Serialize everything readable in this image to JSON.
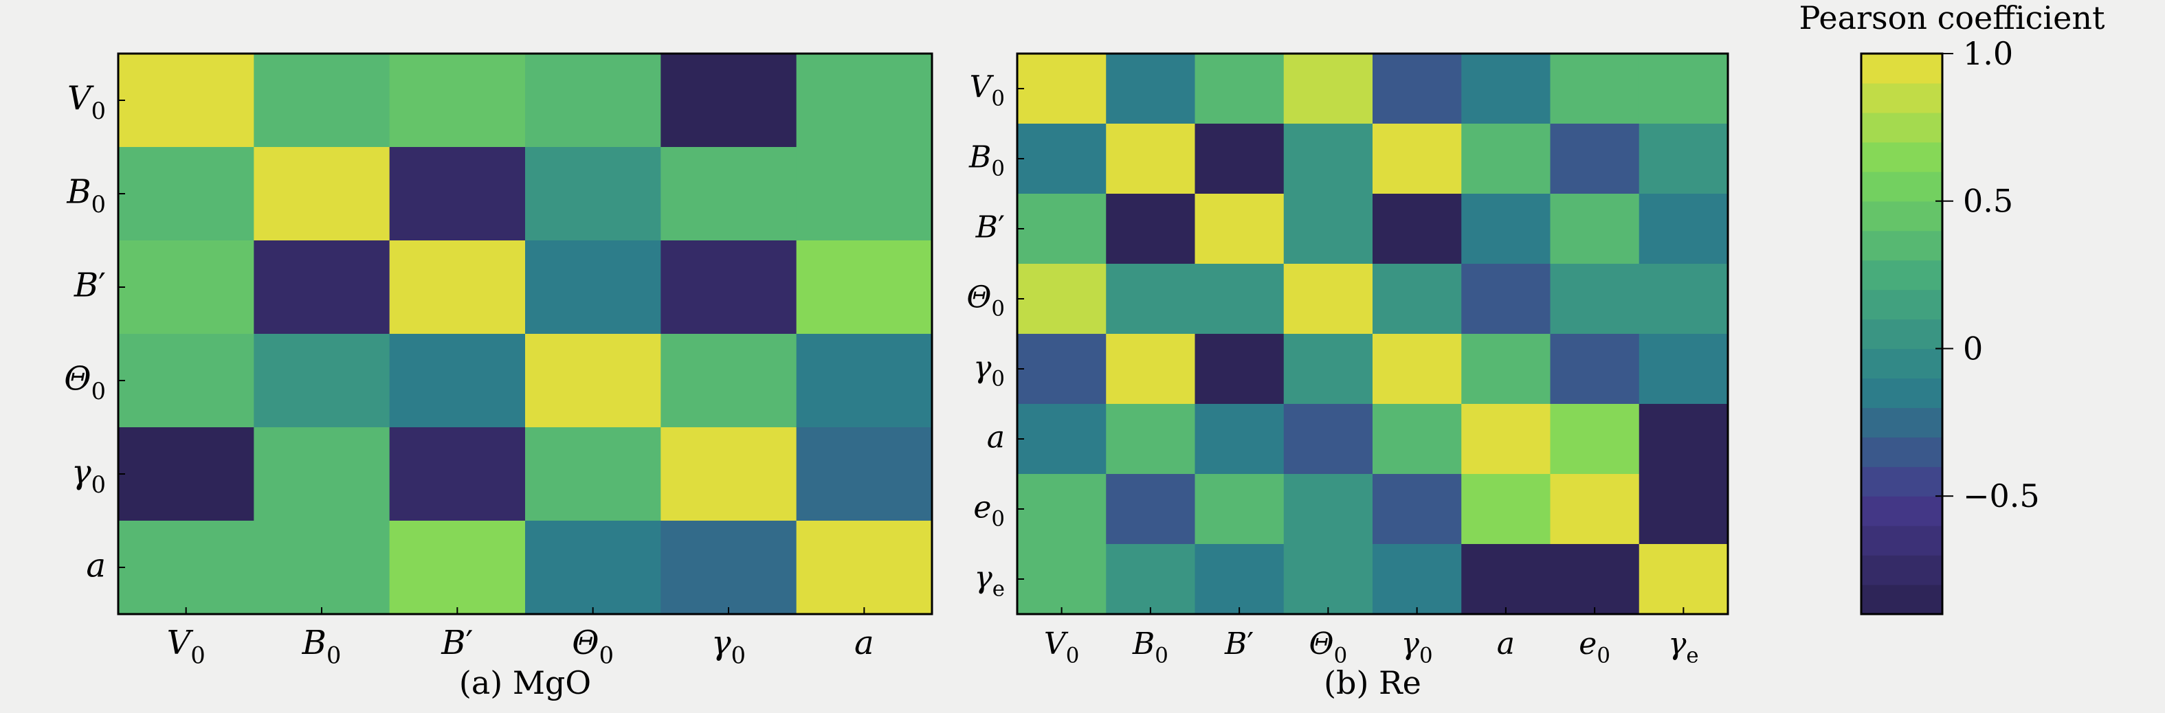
{
  "chart_data": [
    {
      "type": "heatmap",
      "caption": "(a) MgO",
      "labels": [
        {
          "base": "V",
          "sub": "0",
          "prime": ""
        },
        {
          "base": "B",
          "sub": "0",
          "prime": ""
        },
        {
          "base": "B",
          "sub": "",
          "prime": "′"
        },
        {
          "base": "Θ",
          "sub": "0",
          "prime": ""
        },
        {
          "base": "γ",
          "sub": "0",
          "prime": ""
        },
        {
          "base": "a",
          "sub": "",
          "prime": ""
        }
      ],
      "matrix": [
        [
          1.0,
          0.3,
          0.48,
          0.3,
          -0.9,
          0.38
        ],
        [
          0.3,
          1.0,
          -0.72,
          0.08,
          0.3,
          0.3
        ],
        [
          0.48,
          -0.72,
          1.0,
          -0.2,
          -0.72,
          0.63
        ],
        [
          0.3,
          0.08,
          -0.2,
          1.0,
          0.3,
          -0.2
        ],
        [
          -0.9,
          0.3,
          -0.72,
          0.3,
          1.0,
          -0.3
        ],
        [
          0.38,
          0.3,
          0.63,
          -0.2,
          -0.3,
          1.0
        ]
      ]
    },
    {
      "type": "heatmap",
      "caption": "(b) Re",
      "labels": [
        {
          "base": "V",
          "sub": "0",
          "prime": ""
        },
        {
          "base": "B",
          "sub": "0",
          "prime": ""
        },
        {
          "base": "B",
          "sub": "",
          "prime": "′"
        },
        {
          "base": "Θ",
          "sub": "0",
          "prime": ""
        },
        {
          "base": "γ",
          "sub": "0",
          "prime": ""
        },
        {
          "base": "a",
          "sub": "",
          "prime": ""
        },
        {
          "base": "e",
          "sub": "0",
          "prime": ""
        },
        {
          "base": "γ",
          "sub": "e",
          "prime": ""
        }
      ],
      "matrix": [
        [
          1.0,
          -0.2,
          0.3,
          0.88,
          -0.35,
          -0.2,
          0.3,
          0.3
        ],
        [
          -0.2,
          1.0,
          -0.9,
          0.05,
          0.93,
          0.3,
          -0.35,
          0.05
        ],
        [
          0.3,
          -0.9,
          1.0,
          0.05,
          -0.82,
          -0.2,
          0.3,
          -0.2
        ],
        [
          0.88,
          0.05,
          0.05,
          1.0,
          0.05,
          -0.35,
          0.05,
          0.05
        ],
        [
          -0.35,
          0.93,
          -0.82,
          0.05,
          1.0,
          0.3,
          -0.35,
          -0.2
        ],
        [
          -0.2,
          0.3,
          -0.2,
          -0.35,
          0.3,
          1.0,
          0.6,
          -0.9
        ],
        [
          0.3,
          -0.35,
          0.3,
          0.05,
          -0.35,
          0.6,
          1.0,
          -0.9
        ],
        [
          0.3,
          0.05,
          -0.2,
          0.05,
          -0.2,
          -0.9,
          -0.9,
          1.0
        ]
      ]
    }
  ],
  "colorbar": {
    "title": "Pearson coefficient",
    "range": [
      -0.9,
      1.0
    ],
    "ticks": [
      {
        "value": 1.0,
        "label": "1.0"
      },
      {
        "value": 0.5,
        "label": "0.5"
      },
      {
        "value": 0.0,
        "label": "0"
      },
      {
        "value": -0.5,
        "label": "−0.5"
      }
    ],
    "levels": 19,
    "colors": [
      "#2b2250",
      "#45398b",
      "#2c7f8a",
      "#47ab7c",
      "#7dd85a",
      "#eede3a"
    ]
  }
}
